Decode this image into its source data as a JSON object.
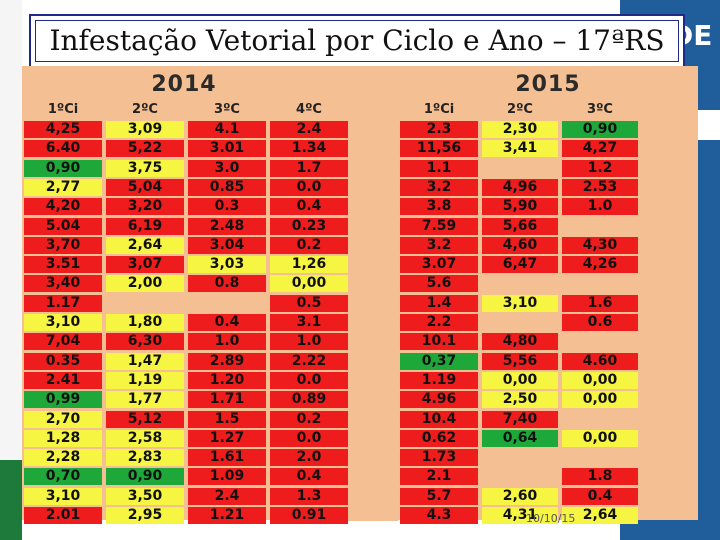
{
  "slide": {
    "title": "Infestação Vetorial por Ciclo e Ano – 17ªRS",
    "logo_text": "DE",
    "footer_date": "10/10/15"
  },
  "colors": {
    "red": "#ee1c1c",
    "yellow": "#f5f542",
    "green": "#1ea83a",
    "blank": "#f4bf92"
  },
  "table": {
    "year_2014": "2014",
    "year_2015": "2015",
    "headers_2014": [
      "1ºCi",
      "2ºC",
      "3ºC",
      "4ºC"
    ],
    "headers_2015": [
      "1ºCi",
      "2ºC",
      "3ºC"
    ],
    "rows": [
      {
        "y2014": [
          [
            "4,25",
            "R"
          ],
          [
            "3,09",
            "Y"
          ],
          [
            "4.1",
            "R"
          ],
          [
            "2.4",
            "R"
          ]
        ],
        "y2015": [
          [
            "2.3",
            "R"
          ],
          [
            "2,30",
            "Y"
          ],
          [
            "0,90",
            "G"
          ]
        ]
      },
      {
        "y2014": [
          [
            "6.40",
            "R"
          ],
          [
            "5,22",
            "R"
          ],
          [
            "3.01",
            "R"
          ],
          [
            "1.34",
            "R"
          ]
        ],
        "y2015": [
          [
            "11,56",
            "R"
          ],
          [
            "3,41",
            "Y"
          ],
          [
            "4,27",
            "R"
          ]
        ]
      },
      {
        "y2014": [
          [
            "0,90",
            "G"
          ],
          [
            "3,75",
            "Y"
          ],
          [
            "3.0",
            "R"
          ],
          [
            "1.7",
            "R"
          ]
        ],
        "y2015": [
          [
            "1.1",
            "R"
          ],
          [
            "",
            ""
          ],
          [
            "1.2",
            "R"
          ]
        ]
      },
      {
        "y2014": [
          [
            "2,77",
            "Y"
          ],
          [
            "5,04",
            "R"
          ],
          [
            "0.85",
            "R"
          ],
          [
            "0.0",
            "R"
          ]
        ],
        "y2015": [
          [
            "3.2",
            "R"
          ],
          [
            "4,96",
            "R"
          ],
          [
            "2.53",
            "R"
          ]
        ]
      },
      {
        "y2014": [
          [
            "4,20",
            "R"
          ],
          [
            "3,20",
            "R"
          ],
          [
            "0.3",
            "R"
          ],
          [
            "0.4",
            "R"
          ]
        ],
        "y2015": [
          [
            "3.8",
            "R"
          ],
          [
            "5,90",
            "R"
          ],
          [
            "1.0",
            "R"
          ]
        ]
      },
      {
        "y2014": [
          [
            "5.04",
            "R"
          ],
          [
            "6,19",
            "R"
          ],
          [
            "2.48",
            "R"
          ],
          [
            "0.23",
            "R"
          ]
        ],
        "y2015": [
          [
            "7.59",
            "R"
          ],
          [
            "5,66",
            "R"
          ],
          [
            "",
            ""
          ]
        ]
      },
      {
        "y2014": [
          [
            "3,70",
            "R"
          ],
          [
            "2,64",
            "Y"
          ],
          [
            "3.04",
            "R"
          ],
          [
            "0.2",
            "R"
          ]
        ],
        "y2015": [
          [
            "3.2",
            "R"
          ],
          [
            "4,60",
            "R"
          ],
          [
            "4,30",
            "R"
          ]
        ]
      },
      {
        "y2014": [
          [
            "3.51",
            "R"
          ],
          [
            "3,07",
            "R"
          ],
          [
            "3,03",
            "Y"
          ],
          [
            "1,26",
            "Y"
          ]
        ],
        "y2015": [
          [
            "3.07",
            "R"
          ],
          [
            "6,47",
            "R"
          ],
          [
            "4,26",
            "R"
          ]
        ]
      },
      {
        "y2014": [
          [
            "3,40",
            "R"
          ],
          [
            "2,00",
            "Y"
          ],
          [
            "0.8",
            "R"
          ],
          [
            "0,00",
            "Y"
          ]
        ],
        "y2015": [
          [
            "5.6",
            "R"
          ],
          [
            "",
            ""
          ],
          [
            "",
            ""
          ]
        ]
      },
      {
        "y2014": [
          [
            "1.17",
            "R"
          ],
          [
            "",
            ""
          ],
          [
            "",
            ""
          ],
          [
            "0.5",
            "R"
          ]
        ],
        "y2015": [
          [
            "1.4",
            "R"
          ],
          [
            "3,10",
            "Y"
          ],
          [
            "1.6",
            "R"
          ]
        ]
      },
      {
        "y2014": [
          [
            "3,10",
            "Y"
          ],
          [
            "1,80",
            "Y"
          ],
          [
            "0.4",
            "R"
          ],
          [
            "3.1",
            "R"
          ]
        ],
        "y2015": [
          [
            "2.2",
            "R"
          ],
          [
            "",
            ""
          ],
          [
            "0.6",
            "R"
          ]
        ]
      },
      {
        "y2014": [
          [
            "7,04",
            "R"
          ],
          [
            "6,30",
            "R"
          ],
          [
            "1.0",
            "R"
          ],
          [
            "1.0",
            "R"
          ]
        ],
        "y2015": [
          [
            "10.1",
            "R"
          ],
          [
            "4,80",
            "R"
          ],
          [
            "",
            ""
          ]
        ]
      },
      {
        "y2014": [
          [
            "0.35",
            "R"
          ],
          [
            "1,47",
            "Y"
          ],
          [
            "2.89",
            "R"
          ],
          [
            "2.22",
            "R"
          ]
        ],
        "y2015": [
          [
            "0,37",
            "G"
          ],
          [
            "5,56",
            "R"
          ],
          [
            "4.60",
            "R"
          ]
        ]
      },
      {
        "y2014": [
          [
            "2.41",
            "R"
          ],
          [
            "1,19",
            "Y"
          ],
          [
            "1.20",
            "R"
          ],
          [
            "0.0",
            "R"
          ]
        ],
        "y2015": [
          [
            "1.19",
            "R"
          ],
          [
            "0,00",
            "Y"
          ],
          [
            "0,00",
            "Y"
          ]
        ]
      },
      {
        "y2014": [
          [
            "0,99",
            "G"
          ],
          [
            "1,77",
            "Y"
          ],
          [
            "1.71",
            "R"
          ],
          [
            "0.89",
            "R"
          ]
        ],
        "y2015": [
          [
            "4.96",
            "R"
          ],
          [
            "2,50",
            "Y"
          ],
          [
            "0,00",
            "Y"
          ]
        ]
      },
      {
        "y2014": [
          [
            "2,70",
            "Y"
          ],
          [
            "5,12",
            "R"
          ],
          [
            "1.5",
            "R"
          ],
          [
            "0.2",
            "R"
          ]
        ],
        "y2015": [
          [
            "10.4",
            "R"
          ],
          [
            "7,40",
            "R"
          ],
          [
            "",
            ""
          ]
        ]
      },
      {
        "y2014": [
          [
            "1,28",
            "Y"
          ],
          [
            "2,58",
            "Y"
          ],
          [
            "1.27",
            "R"
          ],
          [
            "0.0",
            "R"
          ]
        ],
        "y2015": [
          [
            "0.62",
            "R"
          ],
          [
            "0,64",
            "G"
          ],
          [
            "0,00",
            "Y"
          ]
        ]
      },
      {
        "y2014": [
          [
            "2,28",
            "Y"
          ],
          [
            "2,83",
            "Y"
          ],
          [
            "1.61",
            "R"
          ],
          [
            "2.0",
            "R"
          ]
        ],
        "y2015": [
          [
            "1.73",
            "R"
          ],
          [
            "",
            ""
          ],
          [
            "",
            ""
          ]
        ]
      },
      {
        "y2014": [
          [
            "0,70",
            "G"
          ],
          [
            "0,90",
            "G"
          ],
          [
            "1.09",
            "R"
          ],
          [
            "0.4",
            "R"
          ]
        ],
        "y2015": [
          [
            "2.1",
            "R"
          ],
          [
            "",
            ""
          ],
          [
            "1.8",
            "R"
          ]
        ]
      },
      {
        "y2014": [
          [
            "3,10",
            "Y"
          ],
          [
            "3,50",
            "Y"
          ],
          [
            "2.4",
            "R"
          ],
          [
            "1.3",
            "R"
          ]
        ],
        "y2015": [
          [
            "5.7",
            "R"
          ],
          [
            "2,60",
            "Y"
          ],
          [
            "0.4",
            "R"
          ]
        ]
      },
      {
        "y2014": [
          [
            "2.01",
            "R"
          ],
          [
            "2,95",
            "Y"
          ],
          [
            "1.21",
            "R"
          ],
          [
            "0.91",
            "R"
          ]
        ],
        "y2015": [
          [
            "4.3",
            "R"
          ],
          [
            "4,31",
            "Y"
          ],
          [
            "2,64",
            "Y"
          ]
        ]
      }
    ]
  }
}
